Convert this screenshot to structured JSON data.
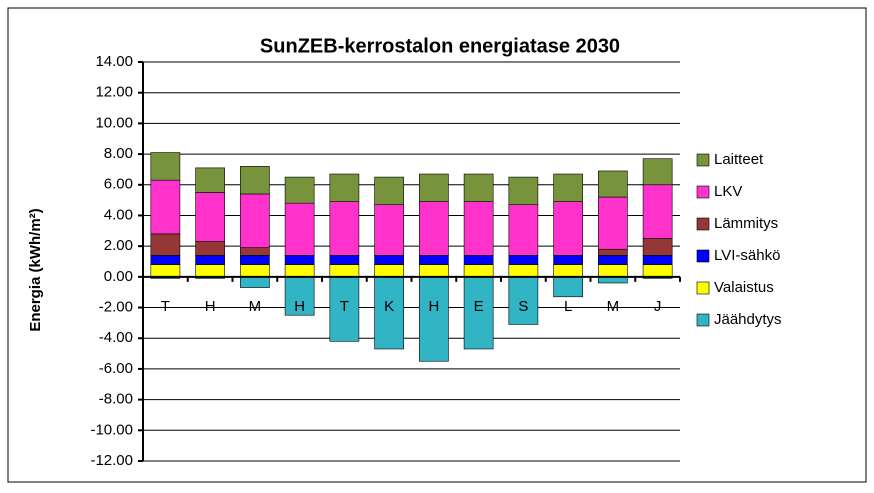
{
  "chart_data": {
    "type": "bar",
    "stacked": true,
    "title": "SunZEB-kerrostalon energiatase 2030",
    "y_label": "Energia (kWh/m²)",
    "categories": [
      "T",
      "H",
      "M",
      "H",
      "T",
      "K",
      "H",
      "E",
      "S",
      "L",
      "M",
      "J"
    ],
    "series": [
      {
        "name": "Laitteet",
        "color": "#77933c",
        "values": [
          1.8,
          1.6,
          1.8,
          1.7,
          1.8,
          1.8,
          1.8,
          1.8,
          1.8,
          1.8,
          1.7,
          1.7
        ]
      },
      {
        "name": "LKV",
        "color": "#ff33cc",
        "values": [
          3.5,
          3.2,
          3.5,
          3.4,
          3.5,
          3.3,
          3.5,
          3.5,
          3.3,
          3.5,
          3.4,
          3.5
        ]
      },
      {
        "name": "Lämmitys",
        "color": "#953735",
        "values": [
          1.4,
          0.9,
          0.5,
          0,
          0,
          0,
          0,
          0,
          0,
          0,
          0.4,
          1.1
        ]
      },
      {
        "name": "LVI-sähkö",
        "color": "#0000ff",
        "values": [
          0.6,
          0.6,
          0.6,
          0.6,
          0.6,
          0.6,
          0.6,
          0.6,
          0.6,
          0.6,
          0.6,
          0.6
        ]
      },
      {
        "name": "Valaistus",
        "color": "#ffff00",
        "values": [
          0.8,
          0.8,
          0.8,
          0.8,
          0.8,
          0.8,
          0.8,
          0.8,
          0.8,
          0.8,
          0.8,
          0.8
        ]
      },
      {
        "name": "Jäähdytys",
        "color": "#31b4c4",
        "values": [
          -0.1,
          -0.1,
          -0.7,
          -2.5,
          -4.2,
          -4.7,
          -5.5,
          -4.7,
          -3.1,
          -1.3,
          -0.4,
          -0.1
        ]
      }
    ],
    "ylim": [
      -12,
      14
    ],
    "yticks": [
      {
        "value": 14,
        "label": "14.00"
      },
      {
        "value": 12,
        "label": "12.00"
      },
      {
        "value": 10,
        "label": "10.00"
      },
      {
        "value": 8,
        "label": "8.00"
      },
      {
        "value": 6,
        "label": "6.00"
      },
      {
        "value": 4,
        "label": "4.00"
      },
      {
        "value": 2,
        "label": "2.00"
      },
      {
        "value": 0,
        "label": "0.00"
      },
      {
        "value": -2,
        "label": "-2.00"
      },
      {
        "value": -4,
        "label": "-4.00"
      },
      {
        "value": -6,
        "label": "-6.00"
      },
      {
        "value": -8,
        "label": "-8.00"
      },
      {
        "value": -10,
        "label": "-10.00"
      },
      {
        "value": -12,
        "label": "-12.00"
      }
    ],
    "grid": true,
    "legend": "right"
  }
}
